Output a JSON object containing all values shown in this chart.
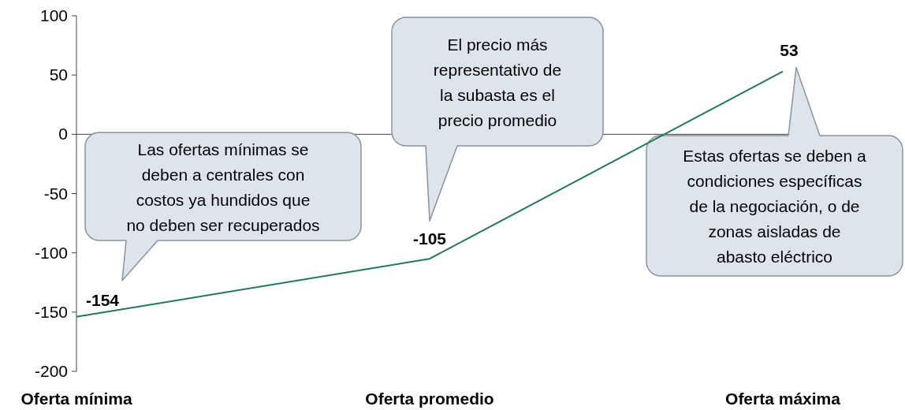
{
  "chart_data": {
    "type": "line",
    "categories": [
      "Oferta mínima",
      "Oferta promedio",
      "Oferta máxima"
    ],
    "series": [
      {
        "color": "#1f7a5a",
        "values": [
          -154,
          -105,
          53
        ]
      }
    ],
    "ylim": [
      -200,
      100
    ],
    "yticks": [
      -200,
      -150,
      -100,
      -50,
      0,
      50,
      100
    ],
    "ref_lines": [
      {
        "axis": "y",
        "value": 0,
        "color": "#404040"
      }
    ],
    "data_labels": true,
    "marker": "none",
    "line_style": "solid",
    "annotations": [
      "Las ofertas mínimas se\ndeben a centrales con\ncostos ya hundidos que\nno deben ser recuperados",
      "El precio más\nrepresentativo de\nla subasta es el\nprecio promedio",
      "Estas ofertas se deben a\ncondiciones específicas\nde la negociación, o de\nzonas aisladas de\nabasto eléctrico"
    ]
  }
}
